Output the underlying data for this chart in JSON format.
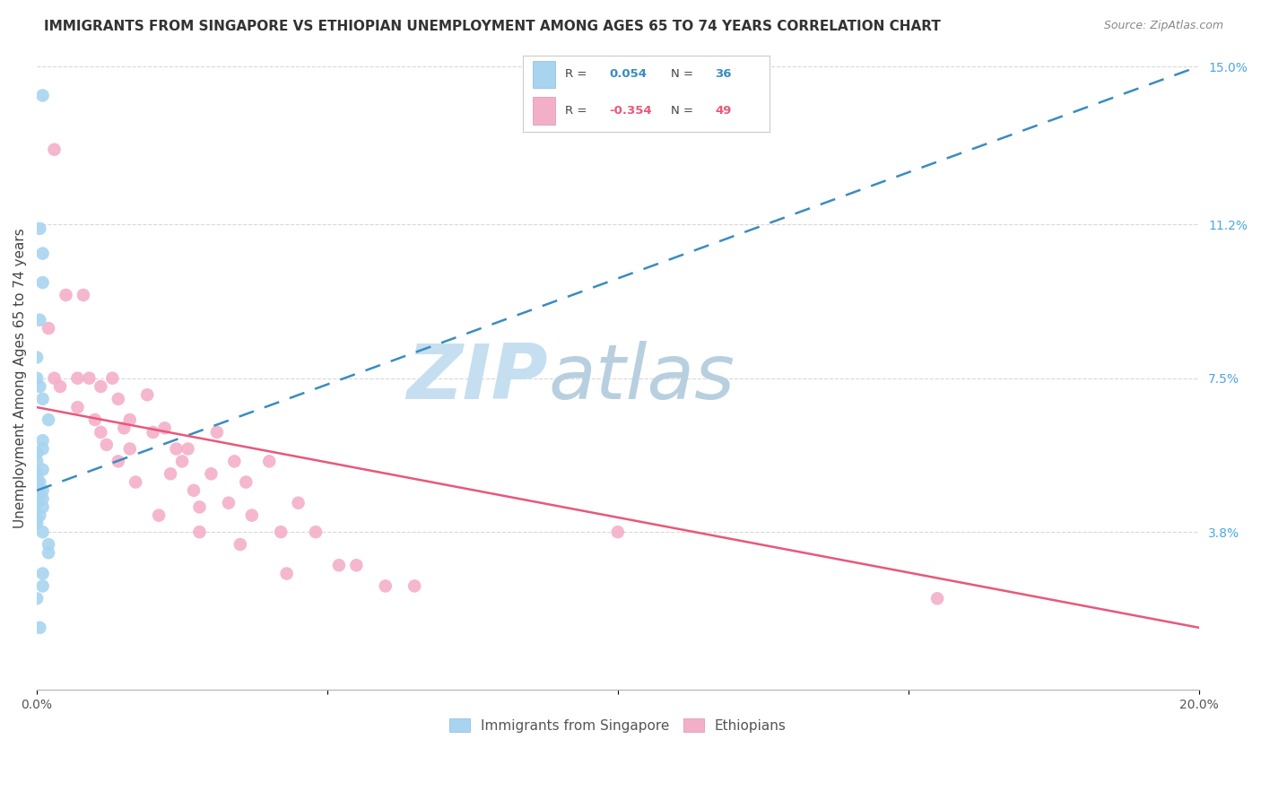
{
  "title": "IMMIGRANTS FROM SINGAPORE VS ETHIOPIAN UNEMPLOYMENT AMONG AGES 65 TO 74 YEARS CORRELATION CHART",
  "source": "Source: ZipAtlas.com",
  "ylabel": "Unemployment Among Ages 65 to 74 years",
  "xlim": [
    0,
    0.2
  ],
  "ylim": [
    0,
    0.15
  ],
  "xticks": [
    0.0,
    0.05,
    0.1,
    0.15,
    0.2
  ],
  "xticklabels": [
    "0.0%",
    "",
    "",
    "",
    "20.0%"
  ],
  "yticks_right": [
    0.0,
    0.038,
    0.075,
    0.112,
    0.15
  ],
  "ytick_labels_right": [
    "",
    "3.8%",
    "7.5%",
    "11.2%",
    "15.0%"
  ],
  "singapore_dot_color": "#a8d4f0",
  "ethiopian_dot_color": "#f4afc8",
  "singapore_line_color": "#3a8cc0",
  "ethiopian_line_color": "#e8587a",
  "background_color": "#ffffff",
  "grid_color": "#d8d8d8",
  "watermark_zip": "ZIP",
  "watermark_atlas": "atlas",
  "watermark_color_zip": "#c8e0f0",
  "watermark_color_atlas": "#b0c8e0",
  "legend_box_color": "#ffffff",
  "legend_border_color": "#cccccc",
  "legend_blue_color": "#a8d4f0",
  "legend_pink_color": "#f4afc8",
  "legend_r1_text_color": "#3a8cc0",
  "legend_r2_text_color": "#e8587a",
  "singapore_x": [
    0.001,
    0.0005,
    0.001,
    0.001,
    0.0005,
    0.0,
    0.0,
    0.0005,
    0.001,
    0.002,
    0.001,
    0.001,
    0.0,
    0.0,
    0.001,
    0.0,
    0.0,
    0.0005,
    0.0,
    0.0,
    0.001,
    0.0,
    0.0005,
    0.001,
    0.0,
    0.001,
    0.0005,
    0.0,
    0.0,
    0.001,
    0.002,
    0.002,
    0.001,
    0.001,
    0.0,
    0.0005
  ],
  "singapore_y": [
    0.143,
    0.111,
    0.105,
    0.098,
    0.089,
    0.08,
    0.075,
    0.073,
    0.07,
    0.065,
    0.06,
    0.058,
    0.057,
    0.055,
    0.053,
    0.052,
    0.051,
    0.05,
    0.05,
    0.049,
    0.048,
    0.048,
    0.047,
    0.046,
    0.045,
    0.044,
    0.042,
    0.041,
    0.04,
    0.038,
    0.035,
    0.033,
    0.028,
    0.025,
    0.022,
    0.015
  ],
  "ethiopian_x": [
    0.002,
    0.003,
    0.003,
    0.004,
    0.005,
    0.007,
    0.007,
    0.008,
    0.009,
    0.01,
    0.011,
    0.011,
    0.012,
    0.013,
    0.014,
    0.014,
    0.015,
    0.016,
    0.016,
    0.017,
    0.019,
    0.02,
    0.021,
    0.022,
    0.023,
    0.024,
    0.025,
    0.026,
    0.027,
    0.028,
    0.028,
    0.03,
    0.031,
    0.033,
    0.034,
    0.035,
    0.036,
    0.037,
    0.04,
    0.042,
    0.043,
    0.045,
    0.048,
    0.052,
    0.055,
    0.06,
    0.065,
    0.1,
    0.155
  ],
  "ethiopian_y": [
    0.087,
    0.13,
    0.075,
    0.073,
    0.095,
    0.075,
    0.068,
    0.095,
    0.075,
    0.065,
    0.073,
    0.062,
    0.059,
    0.075,
    0.07,
    0.055,
    0.063,
    0.058,
    0.065,
    0.05,
    0.071,
    0.062,
    0.042,
    0.063,
    0.052,
    0.058,
    0.055,
    0.058,
    0.048,
    0.044,
    0.038,
    0.052,
    0.062,
    0.045,
    0.055,
    0.035,
    0.05,
    0.042,
    0.055,
    0.038,
    0.028,
    0.045,
    0.038,
    0.03,
    0.03,
    0.025,
    0.025,
    0.038,
    0.022
  ],
  "sg_line_x0": 0.0,
  "sg_line_x1": 0.2,
  "sg_line_y0": 0.048,
  "sg_line_y1": 0.15,
  "et_line_x0": 0.0,
  "et_line_x1": 0.2,
  "et_line_y0": 0.068,
  "et_line_y1": 0.015,
  "dot_size": 110,
  "title_fontsize": 11,
  "source_fontsize": 9,
  "ylabel_fontsize": 11,
  "tick_fontsize": 10,
  "legend_fontsize": 10
}
